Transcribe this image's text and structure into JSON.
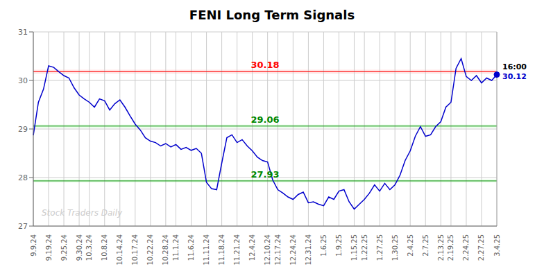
{
  "chart_data": {
    "type": "line",
    "title": "FENI Long Term Signals",
    "categories": [
      "9.9.24",
      null,
      null,
      "9.19.24",
      null,
      null,
      "9.25.24",
      null,
      null,
      "9.30.24",
      null,
      "10.3.24",
      null,
      null,
      "10.8.24",
      null,
      null,
      "10.14.24",
      null,
      null,
      "10.17.24",
      null,
      null,
      "10.22.24",
      null,
      null,
      "10.28.24",
      null,
      "11.1.24",
      null,
      null,
      "11.6.24",
      null,
      null,
      "11.11.24",
      null,
      null,
      "11.18.24",
      null,
      null,
      "11.21.24",
      null,
      null,
      "12.4.24",
      null,
      null,
      "12.10.24",
      null,
      "12.17.24",
      null,
      null,
      "12.24.24",
      null,
      null,
      "12.31.24",
      null,
      null,
      "1.6.25",
      null,
      null,
      "1.9.25",
      null,
      null,
      "1.15.25",
      null,
      "1.22.25",
      null,
      null,
      "1.27.25",
      null,
      null,
      "1.30.25",
      null,
      null,
      "2.4.25",
      null,
      null,
      "2.7.25",
      null,
      null,
      "2.13.25",
      null,
      "2.19.25",
      null,
      null,
      "2.24.25",
      null,
      null,
      "2.27.25",
      null,
      null,
      "3.4.25"
    ],
    "values": [
      28.87,
      29.55,
      29.82,
      30.3,
      30.27,
      30.18,
      30.1,
      30.05,
      29.85,
      29.7,
      29.62,
      29.55,
      29.45,
      29.62,
      29.58,
      29.39,
      29.52,
      29.6,
      29.45,
      29.27,
      29.1,
      28.98,
      28.82,
      28.75,
      28.72,
      28.65,
      28.7,
      28.63,
      28.68,
      28.58,
      28.62,
      28.56,
      28.6,
      28.5,
      27.9,
      27.77,
      27.75,
      28.3,
      28.82,
      28.88,
      28.72,
      28.78,
      28.65,
      28.55,
      28.42,
      28.35,
      28.32,
      27.95,
      27.75,
      27.68,
      27.6,
      27.55,
      27.65,
      27.7,
      27.48,
      27.5,
      27.45,
      27.42,
      27.6,
      27.55,
      27.72,
      27.75,
      27.5,
      27.35,
      27.45,
      27.55,
      27.68,
      27.85,
      27.72,
      27.88,
      27.75,
      27.85,
      28.05,
      28.35,
      28.55,
      28.85,
      29.05,
      28.85,
      28.88,
      29.05,
      29.15,
      29.45,
      29.55,
      30.25,
      30.45,
      30.08,
      30.0,
      30.1,
      29.95,
      30.05,
      30.0,
      30.12
    ],
    "color": "#0000cc",
    "ylim": [
      27,
      31
    ],
    "yticks": [
      27,
      28,
      29,
      30,
      31
    ],
    "grid": true,
    "grid_color": "#cccccc",
    "reference_lines": [
      {
        "value": 30.18,
        "label": "30.18",
        "color": "#ff0000",
        "band": 0.04,
        "band_color": "#ffcccc"
      },
      {
        "value": 29.06,
        "label": "29.06",
        "color": "#008800",
        "band": 0.03,
        "band_color": "#ccffcc"
      },
      {
        "value": 27.93,
        "label": "27.93",
        "color": "#008800",
        "band": 0.03,
        "band_color": "#ccffcc"
      }
    ],
    "last_point": {
      "time_label": "16:00",
      "price_label": "30.12",
      "line_color": "#aaaaaa"
    },
    "watermark": {
      "text": "Stock Traders Daily",
      "color": "#cccccc"
    }
  }
}
